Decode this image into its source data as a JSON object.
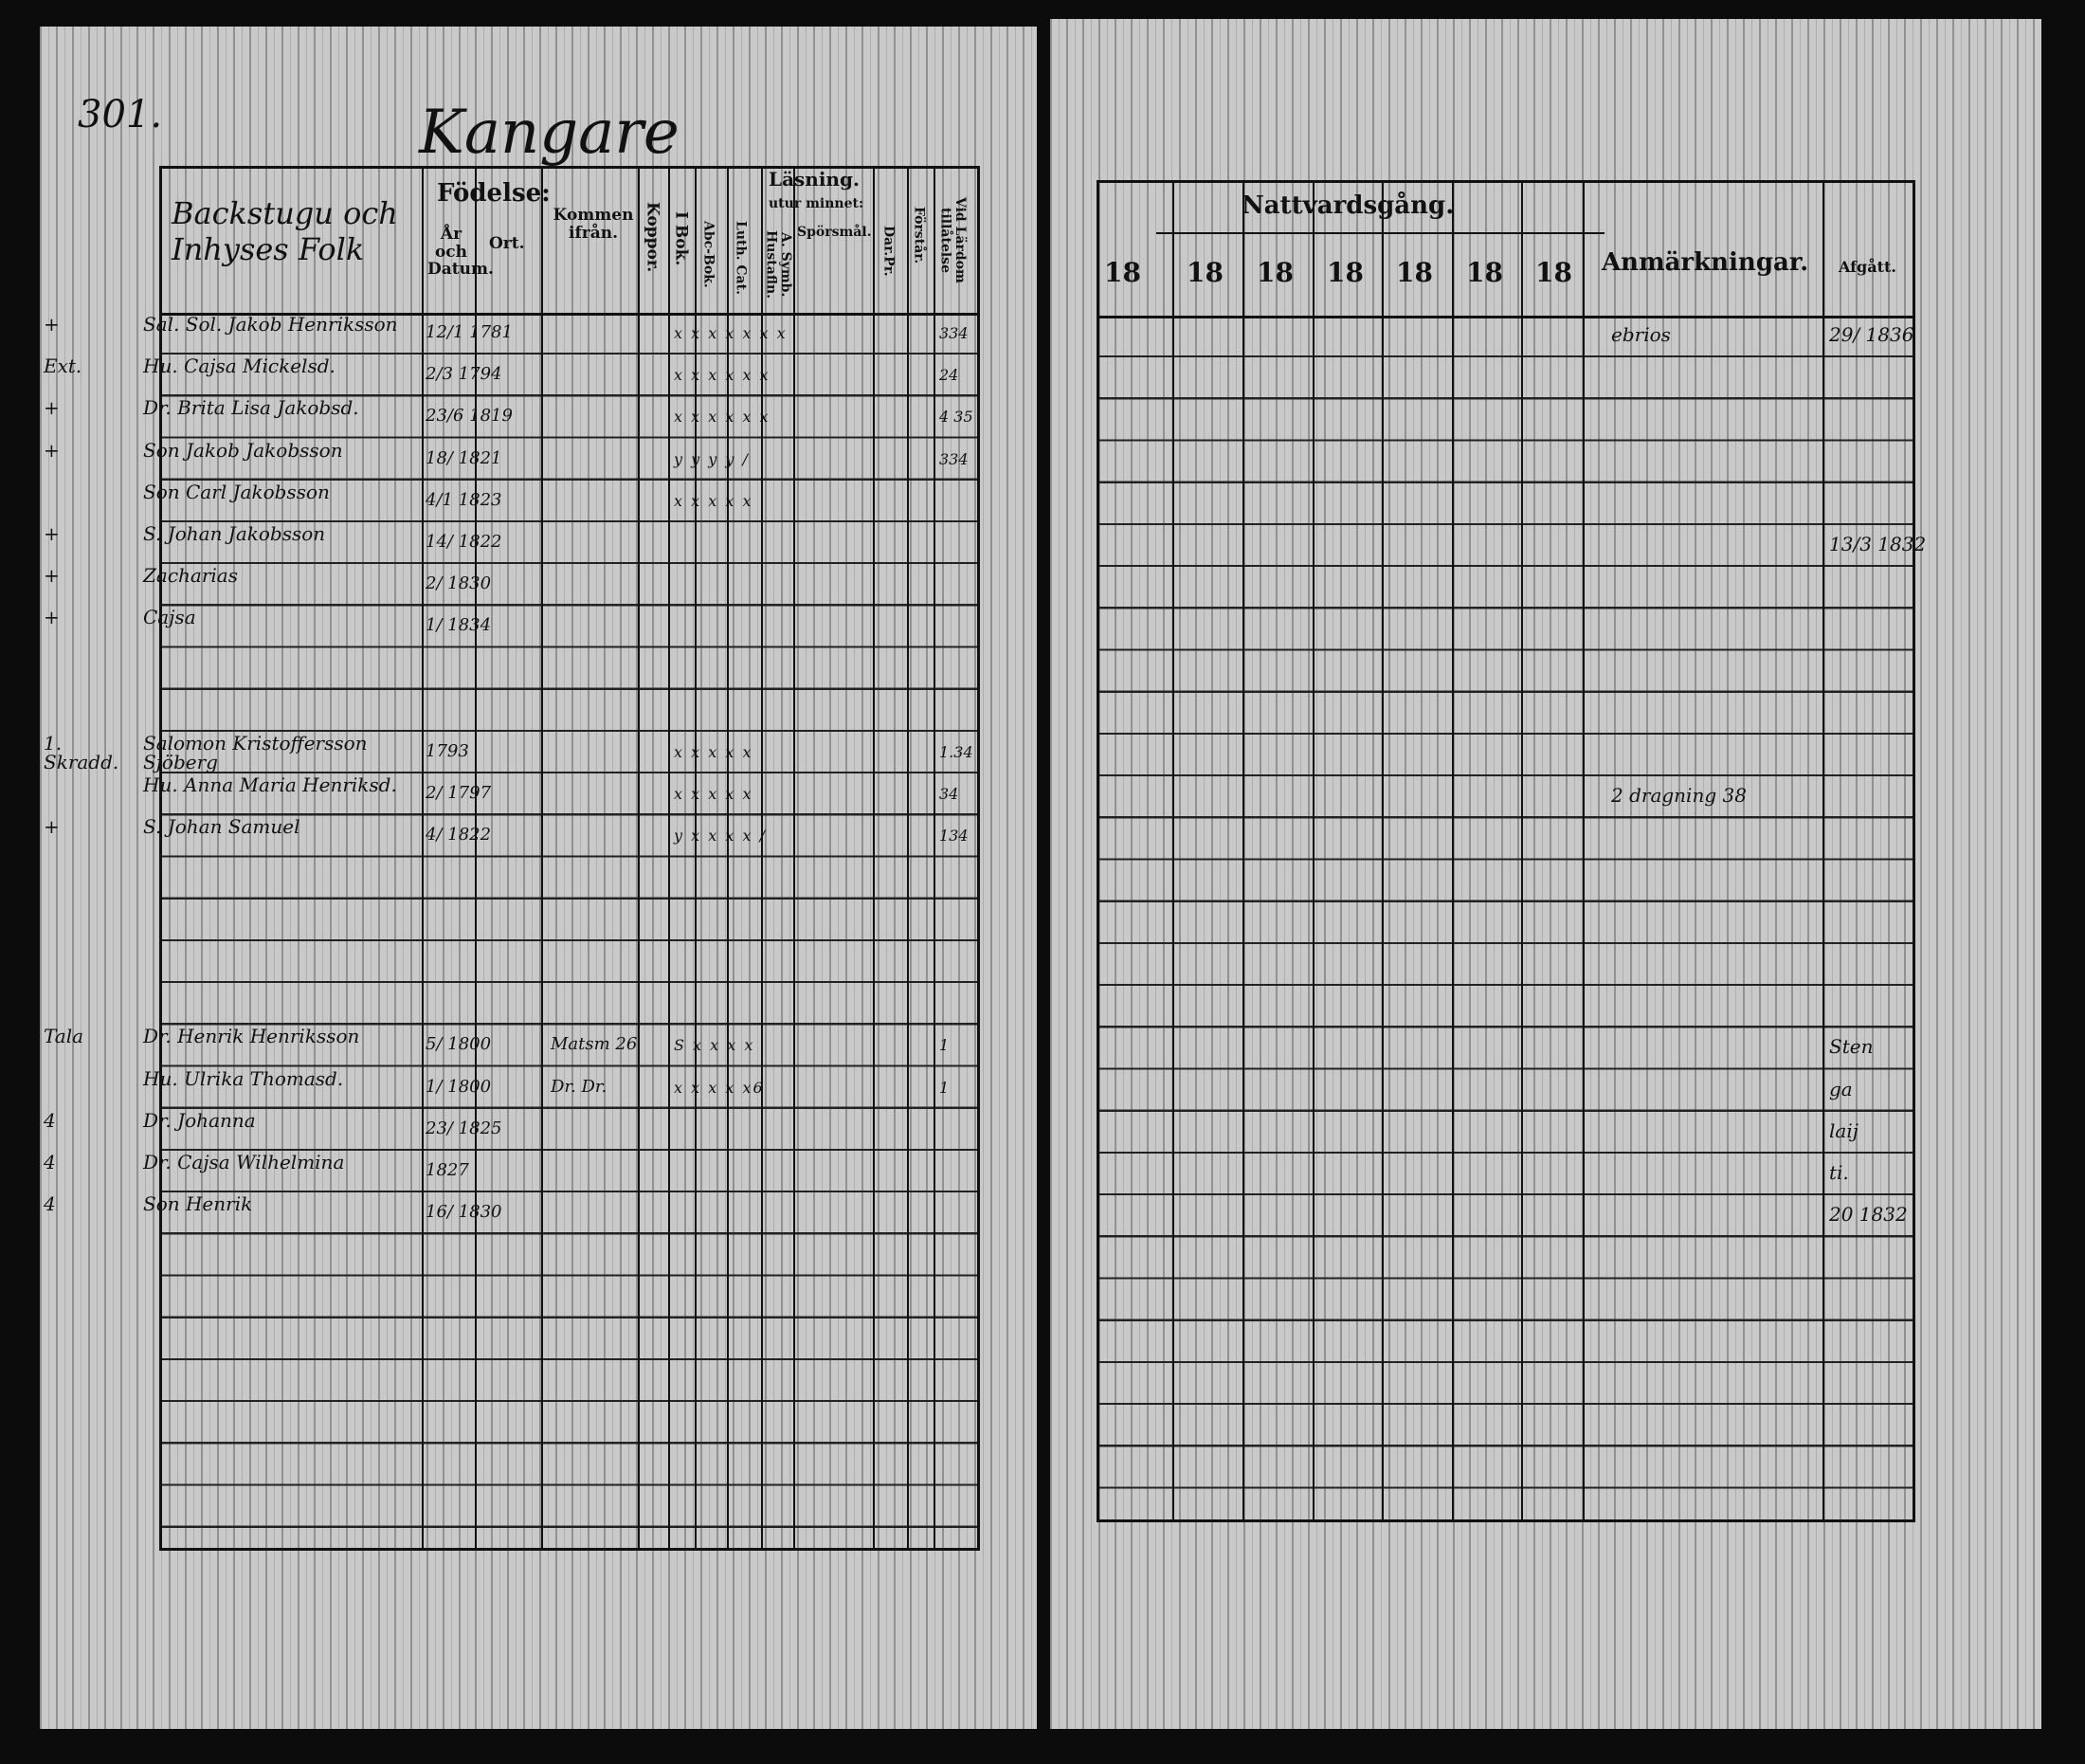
{
  "left_page": {
    "page_number": "301.",
    "village": "Kangare",
    "headers": {
      "name_col": "Backstugu och Inhyses Folk",
      "birth": "Födelse:",
      "year_date": "År och Datum.",
      "place": "Ort.",
      "came_from": "Kommen ifrån.",
      "smallpox": "Koppor.",
      "reading": "Läsning.",
      "from_memory": "utur minnet:",
      "in_book": "I Bok.",
      "abc": "Abc-Bok.",
      "luth_cat": "Luth. Cat.",
      "symb": "A. Symb. Hustafln.",
      "questions": "Spörsmål.",
      "dar": "Dar.Pr.",
      "understands": "Förstår.",
      "admitted": "Vid Lärdom tillåtelse"
    },
    "rows": [
      {
        "margin": "+",
        "name": "Sal. Sol. Jakob Henriksson",
        "date": "12/1 1781",
        "marks": "x x x x x  x x",
        "note": "334"
      },
      {
        "margin": "Ext.",
        "name": "Hu. Cajsa Mickelsd.",
        "date": "2/3 1794",
        "marks": "x x x x x x",
        "note": "24"
      },
      {
        "margin": "+",
        "name": "Dr. Brita Lisa Jakobsd.",
        "date": "23/6 1819",
        "marks": "x x x x x x",
        "note": "4 35"
      },
      {
        "margin": "+",
        "name": "Son Jakob Jakobsson",
        "date": "18/ 1821",
        "marks": "y y y y  /",
        "note": "334"
      },
      {
        "margin": "",
        "name": "Son Carl Jakobsson",
        "date": "4/1 1823",
        "marks": "x x x x x",
        "note": ""
      },
      {
        "margin": "+",
        "name": "S. Johan Jakobsson",
        "date": "14/ 1822",
        "marks": "",
        "note": ""
      },
      {
        "margin": "+",
        "name": "Zacharias",
        "date": "2/ 1830",
        "marks": "",
        "note": ""
      },
      {
        "margin": "+",
        "name": "Cajsa",
        "date": "1/ 1834",
        "marks": "",
        "note": ""
      },
      {},
      {},
      {
        "margin": "1. Skradd.",
        "name": "Salomon Kristoffersson Sjöberg",
        "date": "1793",
        "marks": "x x x  x  x",
        "note": "1.34"
      },
      {
        "margin": "",
        "name": "Hu. Anna Maria Henriksd.",
        "date": "2/ 1797",
        "marks": "x x x  x x",
        "note": "34"
      },
      {
        "margin": "+",
        "name": "S. Johan Samuel",
        "date": "4/ 1822",
        "marks": "y x x x x /",
        "note": "134"
      },
      {},
      {},
      {},
      {},
      {
        "margin": "Tala",
        "name": "Dr. Henrik Henriksson",
        "date": "5/ 1800",
        "came_from": "Matsm 26",
        "marks": "S x x x  x",
        "note": "1"
      },
      {
        "margin": "",
        "name": "Hu. Ulrika Thomasd.",
        "date": "1/ 1800",
        "came_from": "Dr. Dr.",
        "marks": "x x x  x x6",
        "note": "1"
      },
      {
        "margin": "4",
        "name": "Dr. Johanna",
        "date": "23/ 1825",
        "marks": "",
        "note": ""
      },
      {
        "margin": "4",
        "name": "Dr. Cajsa Wilhelmina",
        "date": "1827",
        "marks": "",
        "note": ""
      },
      {
        "margin": "4",
        "name": "Son Henrik",
        "date": "16/ 1830",
        "marks": "",
        "note": ""
      }
    ]
  },
  "right_page": {
    "headers": {
      "communion": "Nattvardsgång.",
      "year_prefix": "18",
      "remarks": "Anmärkningar.",
      "departed": "Afgått."
    },
    "year_columns": [
      "18",
      "18",
      "18",
      "18",
      "18",
      "18",
      "18"
    ],
    "entries": [
      {
        "row": 0,
        "remark": "ebrios",
        "departed": "29/ 1836"
      },
      {
        "row": 5,
        "remark": "",
        "departed": "13/3 1832"
      },
      {
        "row": 11,
        "remark": "2 dragning 38",
        "departed": ""
      },
      {
        "row": 17,
        "remark": "",
        "departed": "Sten"
      },
      {
        "row": 18,
        "remark": "",
        "departed": "ga"
      },
      {
        "row": 19,
        "remark": "",
        "departed": "laij"
      },
      {
        "row": 20,
        "remark": "",
        "departed": "ti."
      },
      {
        "row": 21,
        "remark": "",
        "departed": "20 1832"
      }
    ]
  }
}
